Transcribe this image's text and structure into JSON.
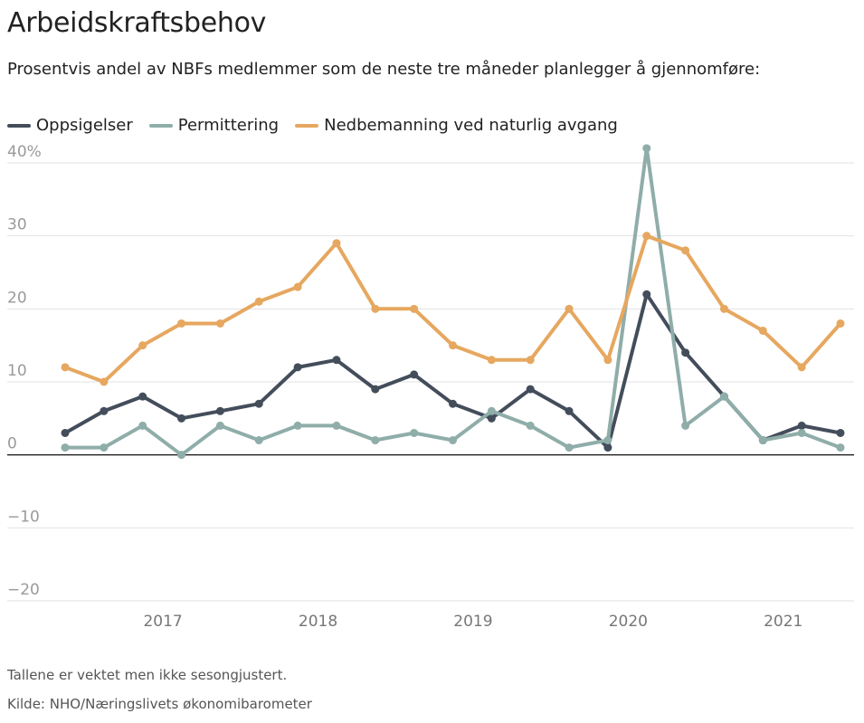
{
  "header": {
    "title": "Arbeidskraftsbehov",
    "subtitle": "Prosentvis andel av NBFs medlemmer som de neste tre måneder planlegger å gjennomføre:"
  },
  "footer": {
    "note": "Tallene er vektet men ikke sesongjustert.",
    "source": "Kilde: NHO/Næringslivets økonomibarometer"
  },
  "chart_data": {
    "type": "line",
    "title": "Arbeidskraftsbehov",
    "subtitle": "Prosentvis andel av NBFs medlemmer som de neste tre måneder planlegger å gjennomføre:",
    "xlabel": "",
    "ylabel": "",
    "x": [
      "2016-Q3",
      "2016-Q4",
      "2017-Q1",
      "2017-Q2",
      "2017-Q3",
      "2017-Q4",
      "2018-Q1",
      "2018-Q2",
      "2018-Q3",
      "2018-Q4",
      "2019-Q1",
      "2019-Q2",
      "2019-Q3",
      "2019-Q4",
      "2020-Q1",
      "2020-Q2",
      "2020-Q3",
      "2020-Q4",
      "2021-Q1",
      "2021-Q2",
      "2021-Q3"
    ],
    "x_tick_labels": [
      "2017",
      "2018",
      "2019",
      "2020",
      "2021"
    ],
    "y_tick_labels": [
      "40%",
      "30",
      "20",
      "10",
      "0",
      "−10",
      "−20"
    ],
    "y_ticks": [
      40,
      30,
      20,
      10,
      0,
      -10,
      -20
    ],
    "ylim": [
      -20,
      40
    ],
    "grid": true,
    "legend_position": "top-left",
    "series": [
      {
        "name": "Oppsigelser",
        "color": "#434d5b",
        "values": [
          3,
          6,
          8,
          5,
          6,
          7,
          12,
          13,
          9,
          11,
          7,
          5,
          9,
          6,
          1,
          22,
          14,
          8,
          2,
          4,
          3
        ]
      },
      {
        "name": "Permittering",
        "color": "#8fada9",
        "values": [
          1,
          1,
          4,
          0,
          4,
          2,
          4,
          4,
          2,
          3,
          2,
          6,
          4,
          1,
          2,
          42,
          4,
          8,
          2,
          3,
          1
        ]
      },
      {
        "name": "Nedbemanning ved naturlig avgang",
        "color": "#e6a75f",
        "values": [
          12,
          10,
          15,
          18,
          18,
          21,
          23,
          29,
          20,
          20,
          15,
          13,
          13,
          20,
          13,
          30,
          28,
          20,
          17,
          12,
          18
        ]
      }
    ]
  }
}
